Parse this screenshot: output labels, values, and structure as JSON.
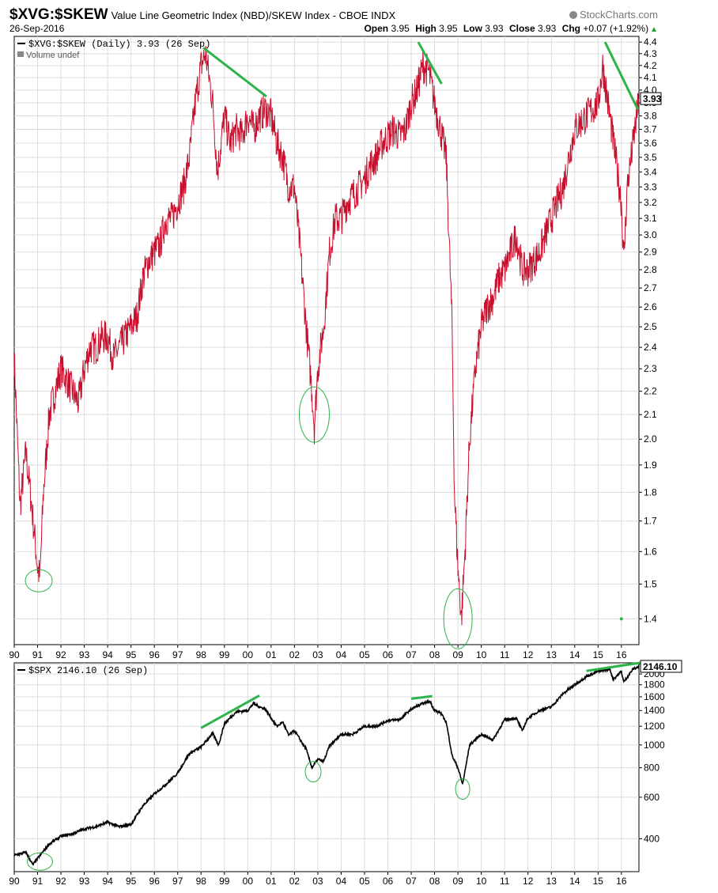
{
  "header": {
    "symbol": "$XVG:$SKEW",
    "description": "Value Line Geometric Index (NBD)/SKEW Index - CBOE INDX",
    "date": "26-Sep-2016",
    "brand": "StockCharts.com",
    "open_label": "Open",
    "open_value": "3.95",
    "high_label": "High",
    "high_value": "3.95",
    "low_label": "Low",
    "low_value": "3.93",
    "close_label": "Close",
    "close_value": "3.93",
    "chg_label": "Chg",
    "chg_value": "+0.07 (+1.92%)"
  },
  "colors": {
    "ratio_line": "#c8102e",
    "spx_line": "#000000",
    "annotation": "#2db34a",
    "grid": "#dcdcdc",
    "axis": "#000000"
  },
  "chart_data": [
    {
      "type": "line",
      "legend": "$XVG:$SKEW (Daily) 3.93 (26 Sep)",
      "volume_legend": "Volume undef",
      "last_value_label": "3.93",
      "x_tick_labels": [
        "90",
        "91",
        "92",
        "93",
        "94",
        "95",
        "96",
        "97",
        "98",
        "99",
        "00",
        "01",
        "02",
        "03",
        "04",
        "05",
        "06",
        "07",
        "08",
        "09",
        "10",
        "11",
        "12",
        "13",
        "14",
        "15",
        "16"
      ],
      "x_range": [
        1990.0,
        2016.75
      ],
      "y_scale": "log",
      "ylim": [
        1.33,
        4.45
      ],
      "y_ticks": [
        1.4,
        1.5,
        1.6,
        1.7,
        1.8,
        1.9,
        2.0,
        2.1,
        2.2,
        2.3,
        2.4,
        2.5,
        2.6,
        2.7,
        2.8,
        2.9,
        3.0,
        3.1,
        3.2,
        3.3,
        3.4,
        3.5,
        3.6,
        3.7,
        3.8,
        3.9,
        4.0,
        4.1,
        4.2,
        4.3,
        4.4
      ],
      "grid": true,
      "series": [
        {
          "x": [
            1990.0,
            1990.25,
            1990.5,
            1990.75,
            1991.0,
            1991.1,
            1991.25,
            1991.5,
            1991.75,
            1992.0,
            1992.25,
            1992.5,
            1992.75,
            1993.0,
            1993.25,
            1993.5,
            1993.75,
            1994.0,
            1994.25,
            1994.5,
            1994.75,
            1995.0,
            1995.25,
            1995.5,
            1995.75,
            1996.0,
            1996.25,
            1996.5,
            1996.75,
            1997.0,
            1997.25,
            1997.5,
            1997.75,
            1998.0,
            1998.2,
            1998.5,
            1998.7,
            1999.0,
            1999.25,
            1999.5,
            1999.75,
            2000.0,
            2000.25,
            2000.5,
            2000.75,
            2001.0,
            2001.25,
            2001.5,
            2001.75,
            2002.0,
            2002.25,
            2002.5,
            2002.75,
            2002.85,
            2003.0,
            2003.25,
            2003.5,
            2003.75,
            2004.0,
            2004.25,
            2004.5,
            2004.75,
            2005.0,
            2005.25,
            2005.5,
            2005.75,
            2006.0,
            2006.25,
            2006.5,
            2006.75,
            2007.0,
            2007.25,
            2007.5,
            2007.75,
            2008.0,
            2008.25,
            2008.5,
            2008.75,
            2008.85,
            2009.0,
            2009.15,
            2009.3,
            2009.5,
            2009.75,
            2010.0,
            2010.25,
            2010.5,
            2010.75,
            2011.0,
            2011.25,
            2011.5,
            2011.75,
            2012.0,
            2012.25,
            2012.5,
            2012.75,
            2013.0,
            2013.25,
            2013.5,
            2013.75,
            2014.0,
            2014.25,
            2014.5,
            2014.75,
            2015.0,
            2015.2,
            2015.5,
            2015.75,
            2016.0,
            2016.1,
            2016.25,
            2016.5,
            2016.75
          ],
          "y": [
            2.35,
            1.75,
            1.95,
            1.75,
            1.55,
            1.52,
            1.8,
            2.1,
            2.2,
            2.3,
            2.25,
            2.2,
            2.15,
            2.3,
            2.4,
            2.4,
            2.45,
            2.45,
            2.35,
            2.4,
            2.45,
            2.5,
            2.55,
            2.75,
            2.85,
            2.9,
            2.95,
            3.1,
            3.1,
            3.2,
            3.3,
            3.5,
            3.9,
            4.2,
            4.3,
            3.9,
            3.4,
            3.8,
            3.6,
            3.7,
            3.65,
            3.8,
            3.7,
            3.8,
            3.85,
            3.8,
            3.6,
            3.5,
            3.3,
            3.3,
            2.9,
            2.5,
            2.2,
            2.05,
            2.3,
            2.5,
            2.9,
            3.1,
            3.1,
            3.2,
            3.25,
            3.3,
            3.35,
            3.45,
            3.5,
            3.6,
            3.65,
            3.7,
            3.65,
            3.7,
            3.9,
            4.0,
            4.2,
            4.15,
            3.9,
            3.7,
            3.5,
            2.5,
            1.8,
            1.55,
            1.4,
            1.6,
            2.0,
            2.3,
            2.5,
            2.6,
            2.65,
            2.75,
            2.8,
            2.9,
            3.0,
            2.8,
            2.8,
            2.85,
            2.9,
            3.0,
            3.1,
            3.2,
            3.3,
            3.5,
            3.7,
            3.75,
            3.8,
            3.85,
            3.9,
            4.2,
            3.8,
            3.5,
            3.2,
            2.85,
            3.3,
            3.6,
            3.93
          ]
        }
      ]
    },
    {
      "type": "line",
      "legend": "$SPX 2146.10 (26 Sep)",
      "last_value_label": "2146.10",
      "x_tick_labels": [
        "90",
        "91",
        "92",
        "93",
        "94",
        "95",
        "96",
        "97",
        "98",
        "99",
        "00",
        "01",
        "02",
        "03",
        "04",
        "05",
        "06",
        "07",
        "08",
        "09",
        "10",
        "11",
        "12",
        "13",
        "14",
        "15",
        "16"
      ],
      "x_range": [
        1990.0,
        2016.75
      ],
      "y_scale": "log",
      "ylim": [
        290,
        2230
      ],
      "y_ticks": [
        400,
        600,
        800,
        1000,
        1200,
        1400,
        1600,
        1800,
        2000,
        2200
      ],
      "grid": true,
      "series": [
        {
          "x": [
            1990.0,
            1990.5,
            1990.8,
            1991.0,
            1991.5,
            1992.0,
            1992.5,
            1993.0,
            1993.5,
            1994.0,
            1994.5,
            1995.0,
            1995.5,
            1996.0,
            1996.5,
            1997.0,
            1997.5,
            1998.0,
            1998.5,
            1998.75,
            1999.0,
            1999.5,
            2000.0,
            2000.25,
            2000.5,
            2000.75,
            2001.0,
            2001.25,
            2001.5,
            2001.75,
            2002.0,
            2002.5,
            2002.75,
            2003.0,
            2003.25,
            2003.5,
            2004.0,
            2004.5,
            2005.0,
            2005.5,
            2006.0,
            2006.5,
            2007.0,
            2007.5,
            2007.8,
            2008.0,
            2008.25,
            2008.5,
            2008.75,
            2009.0,
            2009.2,
            2009.5,
            2010.0,
            2010.5,
            2011.0,
            2011.5,
            2011.75,
            2012.0,
            2012.5,
            2013.0,
            2013.5,
            2014.0,
            2014.5,
            2015.0,
            2015.5,
            2015.65,
            2016.0,
            2016.1,
            2016.5,
            2016.75
          ],
          "y": [
            340,
            350,
            310,
            330,
            380,
            410,
            420,
            440,
            450,
            470,
            450,
            460,
            550,
            620,
            680,
            760,
            920,
            980,
            1120,
            1000,
            1230,
            1380,
            1400,
            1500,
            1450,
            1420,
            1300,
            1200,
            1250,
            1100,
            1150,
            960,
            800,
            870,
            850,
            990,
            1110,
            1110,
            1200,
            1200,
            1270,
            1280,
            1420,
            1500,
            1530,
            1400,
            1370,
            1250,
            900,
            800,
            680,
            1000,
            1110,
            1050,
            1280,
            1300,
            1150,
            1300,
            1400,
            1450,
            1650,
            1800,
            1950,
            2050,
            2100,
            1900,
            2050,
            1850,
            2100,
            2146
          ]
        }
      ]
    }
  ]
}
